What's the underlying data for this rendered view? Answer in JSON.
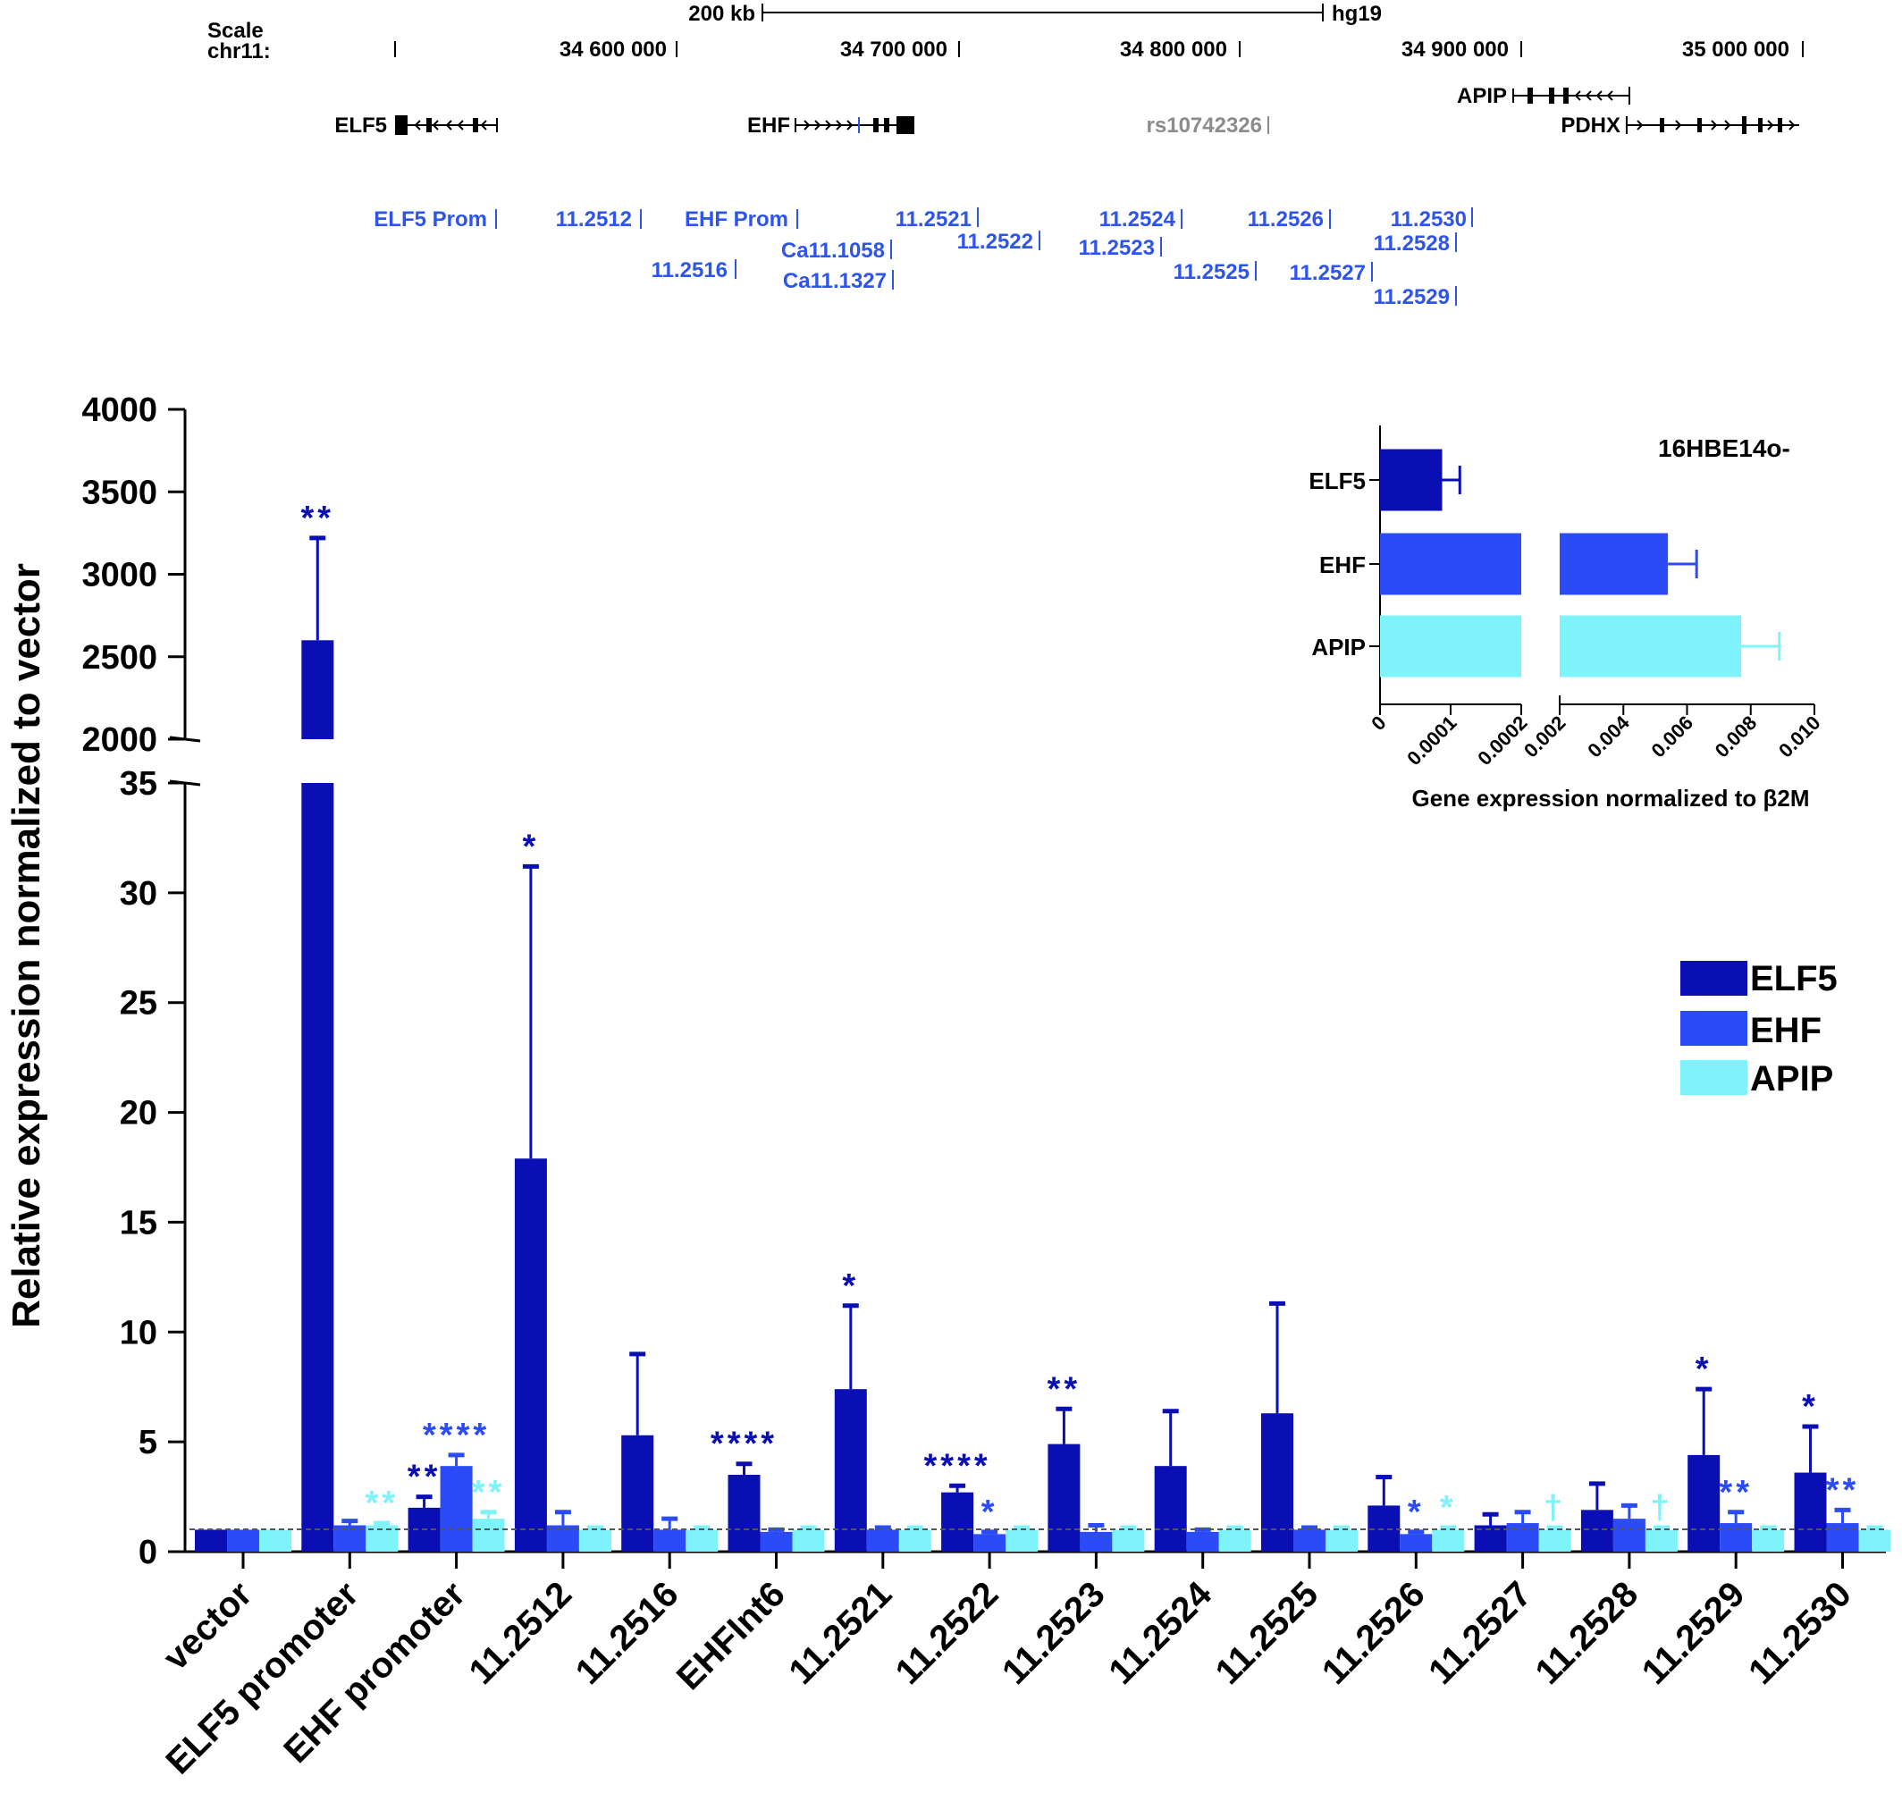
{
  "colors": {
    "elf5": "#0a0fb4",
    "ehf": "#2a4bf5",
    "apip": "#7ef3fb",
    "region_blue": "#2e55ea",
    "snp_gray": "#8c8c8c",
    "black": "#000000"
  },
  "genome_track": {
    "scale_label": "Scale",
    "chr_label": "chr11:",
    "scale_bar": "200 kb",
    "assembly": "hg19",
    "coordinates": [
      "34 600 000",
      "34 700 000",
      "34 800 000",
      "34 900 000",
      "35 000 000"
    ],
    "genes": [
      "ELF5",
      "EHF",
      "APIP",
      "PDHX"
    ],
    "snp": "rs10742326",
    "regions": [
      "ELF5 Prom",
      "11.2512",
      "EHF Prom",
      "11.2516",
      "Ca11.1058",
      "Ca11.1327",
      "11.2521",
      "11.2522",
      "11.2524",
      "11.2523",
      "11.2525",
      "11.2526",
      "11.2527",
      "11.2530",
      "11.2528",
      "11.2529"
    ]
  },
  "chart_data": [
    {
      "type": "bar",
      "ylabel": "Relative expression normalized to vector",
      "y_axis_break": {
        "lower_range": [
          0,
          35
        ],
        "upper_range": [
          2000,
          4000
        ]
      },
      "lower_ticks": [
        "0",
        "5",
        "10",
        "15",
        "20",
        "25",
        "30",
        "35"
      ],
      "upper_ticks": [
        "2000",
        "2500",
        "3000",
        "3500",
        "4000"
      ],
      "reference_line": 1,
      "categories": [
        "vector",
        "ELF5 promoter",
        "EHF promoter",
        "11.2512",
        "11.2516",
        "EHFInt6",
        "11.2521",
        "11.2522",
        "11.2523",
        "11.2524",
        "11.2525",
        "11.2526",
        "11.2527",
        "11.2528",
        "11.2529",
        "11.2530"
      ],
      "legend": [
        "ELF5",
        "EHF",
        "APIP"
      ],
      "legend_position": "right",
      "series": [
        {
          "name": "ELF5",
          "values": [
            1.0,
            2600,
            2.0,
            17.9,
            5.3,
            3.5,
            7.4,
            2.7,
            4.9,
            3.9,
            6.3,
            2.1,
            1.2,
            1.9,
            4.4,
            3.6
          ],
          "errors": [
            0,
            620,
            0.5,
            13.3,
            3.7,
            0.5,
            3.8,
            0.3,
            1.6,
            2.5,
            5.0,
            1.3,
            0.5,
            1.2,
            3.0,
            2.1
          ],
          "significance": [
            "",
            "**",
            "**",
            "*",
            "",
            "****",
            "*",
            "****",
            "**",
            "",
            "",
            "",
            "",
            "",
            "*",
            "*"
          ]
        },
        {
          "name": "EHF",
          "values": [
            1.0,
            1.2,
            3.9,
            1.2,
            1.0,
            0.9,
            1.0,
            0.8,
            0.9,
            0.9,
            1.0,
            0.8,
            1.3,
            1.5,
            1.3,
            1.3
          ],
          "errors": [
            0,
            0.2,
            0.5,
            0.6,
            0.5,
            0.1,
            0.1,
            0.1,
            0.3,
            0.1,
            0.1,
            0.1,
            0.5,
            0.6,
            0.5,
            0.6
          ],
          "significance": [
            "",
            "",
            "****",
            "",
            "",
            "",
            "",
            "*",
            "",
            "",
            "",
            "*",
            "",
            "",
            "**",
            "**"
          ]
        },
        {
          "name": "APIP",
          "values": [
            1.0,
            1.2,
            1.5,
            1.0,
            1.0,
            1.0,
            1.0,
            1.0,
            1.0,
            1.0,
            1.0,
            1.0,
            1.0,
            1.0,
            1.0,
            1.0
          ],
          "errors": [
            0,
            0.1,
            0.3,
            0.1,
            0.1,
            0.1,
            0.1,
            0.1,
            0.1,
            0.1,
            0.1,
            0.1,
            0.1,
            0.1,
            0.1,
            0.1
          ],
          "significance": [
            "",
            "**",
            "**",
            "",
            "",
            "",
            "",
            "",
            "",
            "",
            "",
            "*",
            "†",
            "†",
            "",
            ""
          ]
        }
      ]
    },
    {
      "type": "bar",
      "orientation": "horizontal",
      "title": "16HBE14o-",
      "xlabel": "Gene expression normalized to β2M",
      "categories": [
        "ELF5",
        "EHF",
        "APIP"
      ],
      "values": [
        8.8e-05,
        0.0054,
        0.0077
      ],
      "errors": [
        2.5e-05,
        0.0009,
        0.0012
      ],
      "x_axis_break": {
        "lower_range": [
          0,
          0.0002
        ],
        "upper_range": [
          0.002,
          0.01
        ]
      },
      "lower_ticks": [
        "0",
        "0.0001",
        "0.0002"
      ],
      "upper_ticks": [
        "0.002",
        "0.004",
        "0.006",
        "0.008",
        "0.010"
      ]
    }
  ]
}
